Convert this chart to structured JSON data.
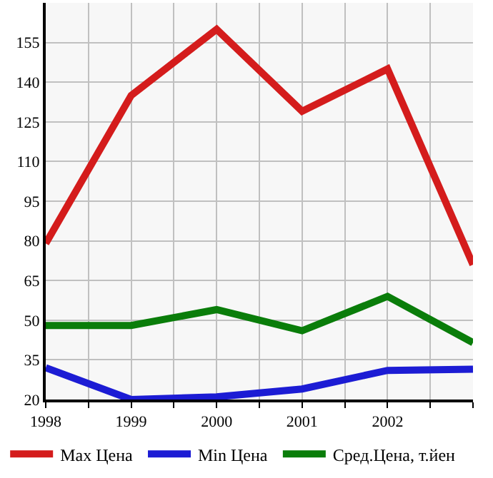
{
  "chart_data": {
    "type": "line",
    "x": [
      1998,
      1999,
      2000,
      2001,
      2002,
      2003
    ],
    "series": [
      {
        "name": "Max Цена",
        "color": "#d41c1c",
        "values": [
          79,
          135,
          160,
          129,
          145,
          71
        ]
      },
      {
        "name": "Min Цена",
        "color": "#1c1cd4",
        "values": [
          32,
          20,
          21,
          24,
          31,
          31.5
        ]
      },
      {
        "name": "Сред.Цена, т.йен",
        "color": "#0a7d0a",
        "values": [
          48,
          48,
          54,
          46,
          59,
          41.5
        ]
      }
    ],
    "xlim": [
      1998,
      2003
    ],
    "xticks": [
      1998,
      {
        "value": 1998.5,
        "label": null
      },
      1999,
      {
        "value": 1999.5,
        "label": null
      },
      2000,
      {
        "value": 2000.5,
        "label": null
      },
      2001,
      {
        "value": 2001.5,
        "label": null
      },
      2002,
      {
        "value": 2002.5,
        "label": null
      },
      {
        "value": 2003,
        "label": null
      }
    ],
    "ylim": [
      20,
      170
    ],
    "yticks": [
      20,
      35,
      50,
      65,
      80,
      95,
      110,
      125,
      140,
      155
    ],
    "grid": true,
    "legend": "bottom",
    "marker": "none",
    "line_style": "solid"
  }
}
